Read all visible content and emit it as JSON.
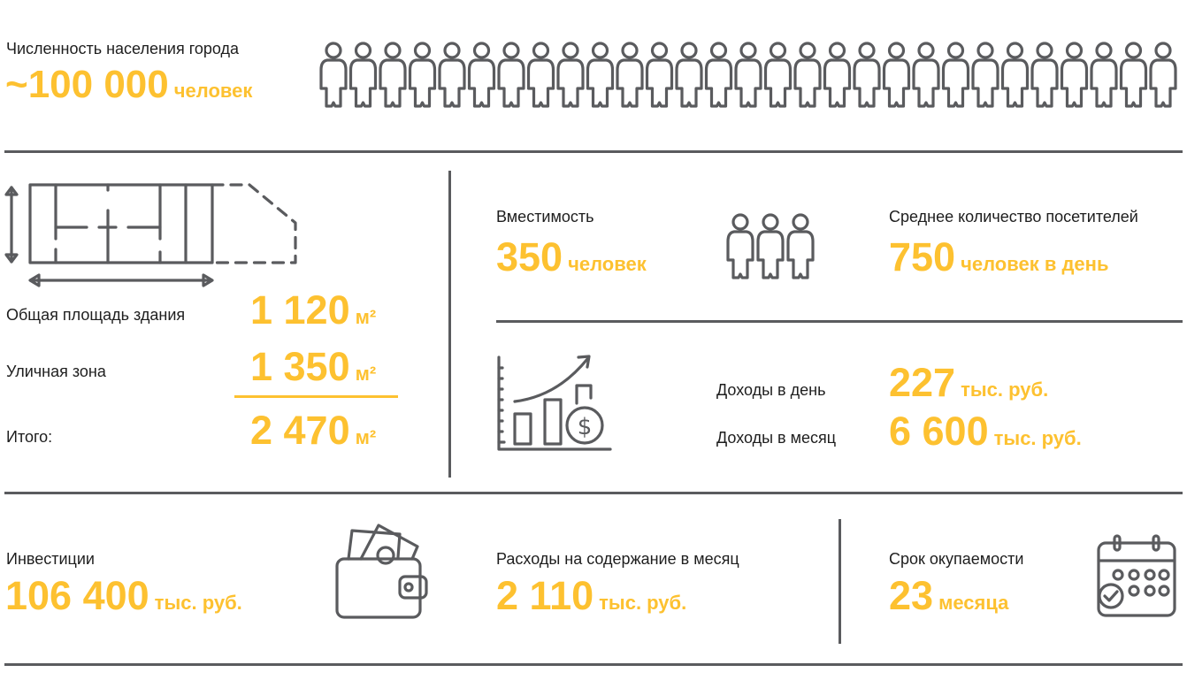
{
  "colors": {
    "accent": "#FDC130",
    "icon": "#5a5b5e"
  },
  "population": {
    "label": "Численность населения города",
    "value": "~100 000",
    "unit": "человек",
    "icon": "person-icon",
    "icon_count": 29
  },
  "area": {
    "icon": "floor-plan-icon",
    "rows": [
      {
        "label": "Общая площадь здания",
        "value": "1 120",
        "unit": "м²"
      },
      {
        "label": "Уличная зона",
        "value": "1 350",
        "unit": "м²"
      },
      {
        "label": "Итого:",
        "value": "2 470",
        "unit": "м²"
      }
    ]
  },
  "capacity": {
    "label": "Вместимость",
    "value": "350",
    "unit": "человек",
    "icon": "people-group-icon"
  },
  "visitors": {
    "label": "Среднее количество посетителей",
    "value": "750",
    "unit": "человек в день"
  },
  "income": {
    "icon": "growth-chart-dollar-icon",
    "day": {
      "label": "Доходы в день",
      "value": "227",
      "unit": "тыс. руб."
    },
    "month": {
      "label": "Доходы в месяц",
      "value": "6 600",
      "unit": "тыс. руб."
    }
  },
  "investments": {
    "label": "Инвестиции",
    "value": "106 400",
    "unit": "тыс. руб.",
    "icon": "wallet-icon"
  },
  "expenses": {
    "label": "Расходы на содержание в месяц",
    "value": "2 110",
    "unit": "тыс. руб."
  },
  "payback": {
    "label": "Срок окупаемости",
    "value": "23",
    "unit": "месяца",
    "icon": "calendar-icon"
  }
}
